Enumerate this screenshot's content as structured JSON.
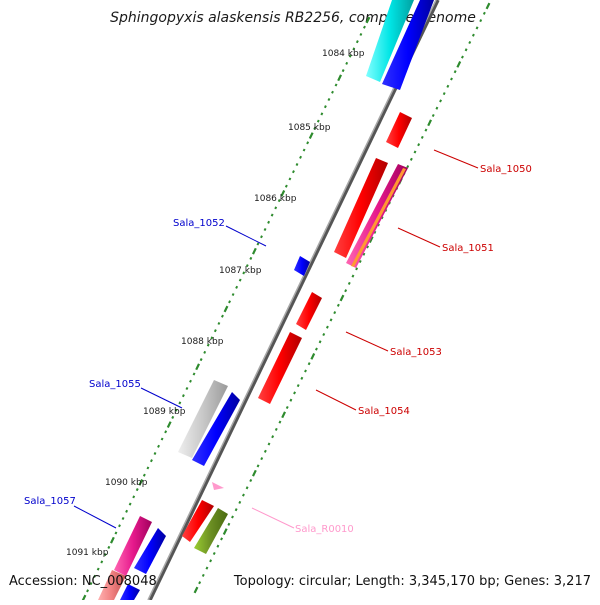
{
  "title": "Sphingopyxis alaskensis RB2256, complete genome",
  "footer": {
    "accession": "Accession: NC_008048",
    "summary": "Topology: circular; Length: 3,345,170 bp; Genes: 3,217"
  },
  "ticks": [
    "1084 kbp",
    "1085 kbp",
    "1086 kbp",
    "1087 kbp",
    "1088 kbp",
    "1089 kbp",
    "1090 kbp",
    "1091 kbp"
  ],
  "genes": [
    {
      "label": "Sala_1050",
      "color": "#cc0000"
    },
    {
      "label": "Sala_1051",
      "color": "#cc0000"
    },
    {
      "label": "Sala_1052",
      "color": "#0000cc"
    },
    {
      "label": "Sala_1053",
      "color": "#cc0000"
    },
    {
      "label": "Sala_1054",
      "color": "#cc0000"
    },
    {
      "label": "Sala_1055",
      "color": "#0000cc"
    },
    {
      "label": "Sala_R0010",
      "color": "#ff99cc"
    },
    {
      "label": "Sala_1057",
      "color": "#0000cc"
    }
  ],
  "colors": {
    "backbone": "#808080",
    "tick": "#2e8b2e",
    "cds_red": "#ff0000",
    "cds_blue": "#0000ff",
    "cyan": "#00e5e5",
    "grey": "#c8c8c8",
    "magenta": "#e6198c",
    "orange": "#ff9933",
    "olive": "#6b8e23",
    "rrna_pink": "#ff99cc",
    "salmon": "#f08080"
  }
}
